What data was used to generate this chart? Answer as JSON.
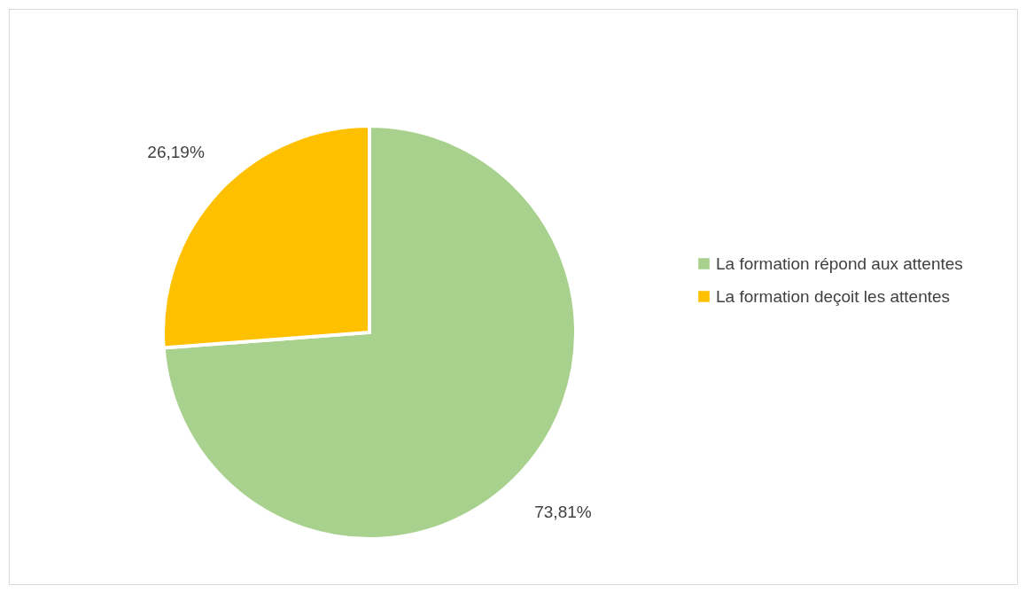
{
  "chart_data": {
    "type": "pie",
    "categories": [
      "La formation répond aux attentes",
      "La formation deçoit les attentes"
    ],
    "values": [
      73.81,
      26.19
    ],
    "colors": [
      "#a9d18e",
      "#ffc000"
    ],
    "value_labels": [
      "73,81%",
      "26,19%"
    ],
    "legend": "right"
  }
}
